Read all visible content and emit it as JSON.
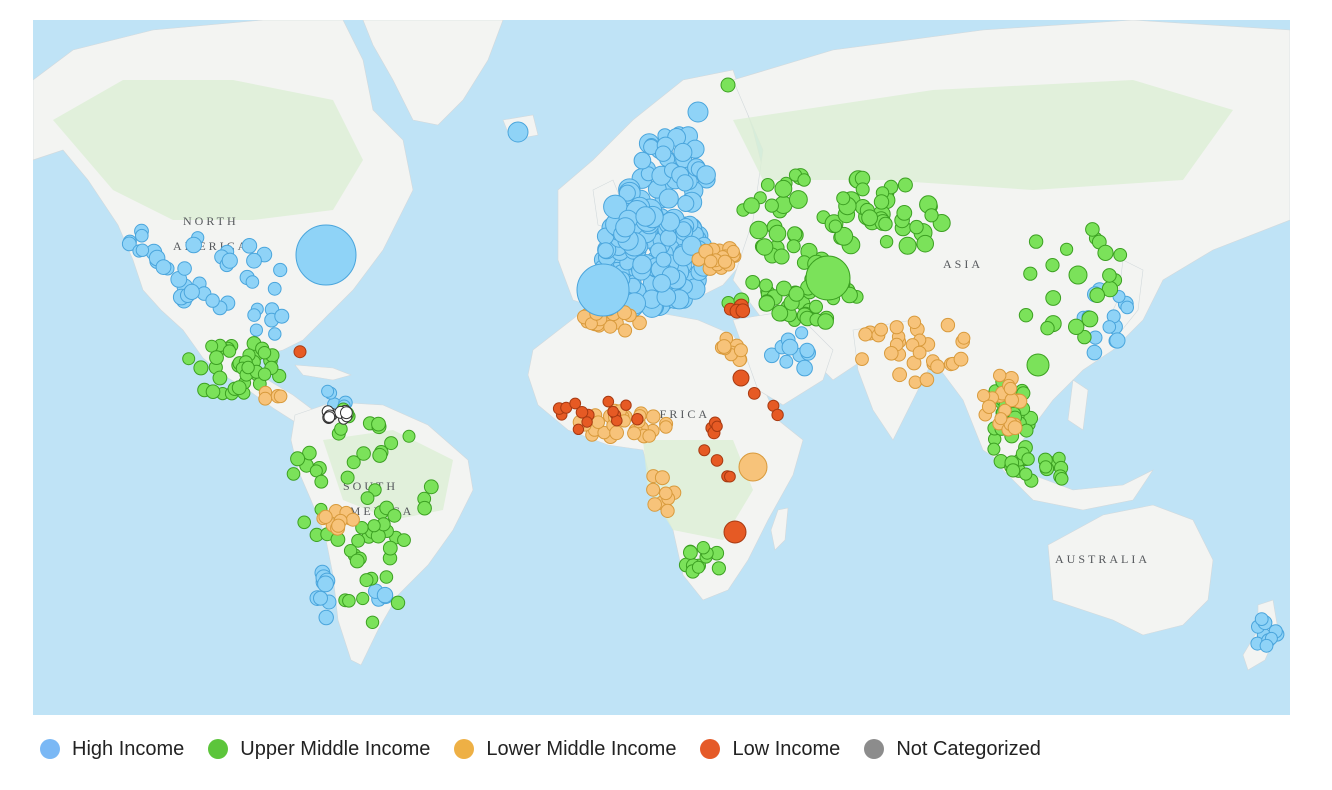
{
  "map": {
    "region_labels": [
      {
        "key": "na1",
        "text": "NORTH"
      },
      {
        "key": "na2",
        "text": "AMERICA"
      },
      {
        "key": "sa1",
        "text": "SOUTH"
      },
      {
        "key": "sa2",
        "text": "AMERICA"
      },
      {
        "key": "af",
        "text": "AFRICA"
      },
      {
        "key": "as",
        "text": "ASIA"
      },
      {
        "key": "au",
        "text": "AUSTRALIA"
      }
    ],
    "colors": {
      "ocean": "#bfe3f6",
      "land": "#f3f4f2",
      "vegetation": "#dcefd4",
      "ice": "#fafcfd"
    }
  },
  "legend": {
    "items": [
      {
        "key": "high",
        "label": "High Income",
        "color": "#7ab8f5"
      },
      {
        "key": "upper",
        "label": "Upper Middle Income",
        "color": "#5cc53b"
      },
      {
        "key": "lower",
        "label": "Lower Middle Income",
        "color": "#eeb045"
      },
      {
        "key": "low",
        "label": "Low Income",
        "color": "#e55a28"
      },
      {
        "key": "nc",
        "label": "Not Categorized",
        "color": "#8c8c8c"
      }
    ]
  },
  "symbols": {
    "high": {
      "fill": "#8fd3f7",
      "stroke": "#4aa5dc"
    },
    "upper": {
      "fill": "#7be25a",
      "stroke": "#3ca022"
    },
    "lower": {
      "fill": "#f7c37a",
      "stroke": "#d89a3c"
    },
    "low": {
      "fill": "#e65a24",
      "stroke": "#a83a12"
    },
    "nc": {
      "fill": "#ffffff",
      "stroke": "#333333"
    }
  }
}
